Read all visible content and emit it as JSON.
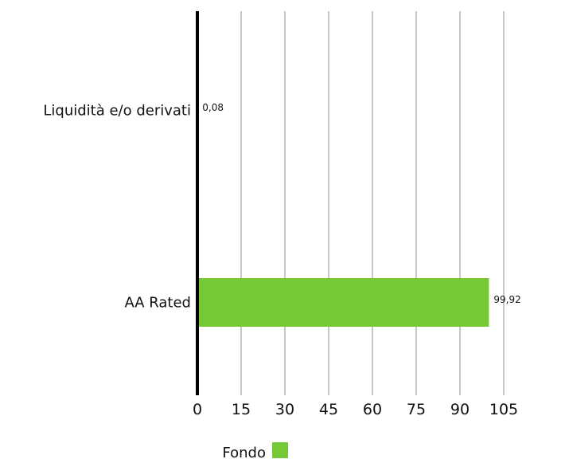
{
  "chart_data": {
    "type": "bar",
    "orientation": "horizontal",
    "categories": [
      "Liquidità e/o derivati",
      "AA Rated"
    ],
    "series": [
      {
        "name": "Fondo",
        "values": [
          0.08,
          99.92
        ],
        "labels": [
          "0,08",
          "99,92"
        ]
      }
    ],
    "xlim": [
      0,
      105
    ],
    "xticks": [
      0,
      15,
      30,
      45,
      60,
      75,
      90,
      105
    ],
    "grid": true,
    "legend_position": "bottom",
    "color": "#76c935"
  }
}
